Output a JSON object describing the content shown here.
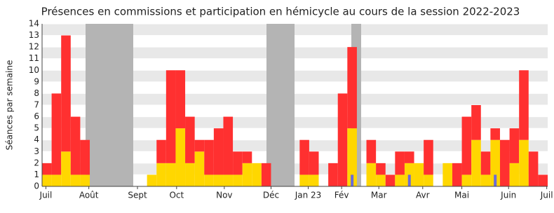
{
  "chart_data": {
    "type": "bar",
    "title": "Présences en commissions et participation en hémicycle au cours de la session 2022-2023",
    "y_label": "Séances par semaine",
    "series": [
      {
        "color": "#ffd700",
        "values": [
          1,
          1,
          3,
          1,
          1,
          0,
          0,
          0,
          0,
          0,
          0,
          1,
          2,
          2,
          5,
          2,
          3,
          1,
          1,
          1,
          1,
          2,
          2,
          0,
          0,
          0,
          0,
          1,
          1,
          0,
          0,
          0,
          5,
          0,
          2,
          1,
          0,
          1,
          2,
          2,
          1,
          0,
          2,
          0,
          1,
          4,
          1,
          4,
          0,
          2,
          4,
          0,
          0
        ]
      },
      {
        "color": "#ff3030",
        "values": [
          1,
          7,
          10,
          5,
          3,
          0,
          0,
          0,
          0,
          0,
          0,
          0,
          2,
          8,
          5,
          4,
          1,
          3,
          4,
          5,
          2,
          1,
          0,
          2,
          0,
          0,
          0,
          3,
          2,
          0,
          2,
          8,
          7,
          0,
          2,
          1,
          1,
          2,
          1,
          0,
          3,
          0,
          0,
          2,
          5,
          3,
          2,
          1,
          4,
          3,
          6,
          3,
          1
        ]
      },
      {
        "color": "#6b6bd8",
        "values": [
          0,
          0,
          0,
          0,
          0,
          0,
          0,
          0,
          0,
          0,
          0,
          0,
          0,
          0,
          0,
          0,
          0,
          0,
          0,
          0,
          0,
          0,
          0,
          0,
          0,
          0,
          0,
          0,
          0,
          0,
          0,
          0,
          1,
          0,
          0,
          0,
          0,
          0,
          1,
          0,
          0,
          0,
          0,
          0,
          0,
          0,
          0,
          1,
          0,
          0,
          0,
          0,
          0
        ]
      }
    ],
    "xlim": [
      0,
      53
    ],
    "xticks": [
      {
        "value": 0.4,
        "label": "Juil"
      },
      {
        "value": 4.9,
        "label": "Août"
      },
      {
        "value": 10,
        "label": "Sept"
      },
      {
        "value": 14.1,
        "label": "Oct"
      },
      {
        "value": 19.1,
        "label": "Nov"
      },
      {
        "value": 24,
        "label": "Déc"
      },
      {
        "value": 27.9,
        "label": "Jan 23"
      },
      {
        "value": 31.4,
        "label": "Fév"
      },
      {
        "value": 35.3,
        "label": "Mar"
      },
      {
        "value": 39.9,
        "label": "Avr"
      },
      {
        "value": 44,
        "label": "Mai"
      },
      {
        "value": 48.9,
        "label": "Juin"
      },
      {
        "value": 52.9,
        "label": "Juil"
      }
    ],
    "ylim": [
      0,
      14
    ],
    "yticks": [
      0,
      1,
      2,
      3,
      4,
      5,
      6,
      7,
      8,
      9,
      10,
      11,
      12,
      13,
      14
    ],
    "grid": true
  }
}
